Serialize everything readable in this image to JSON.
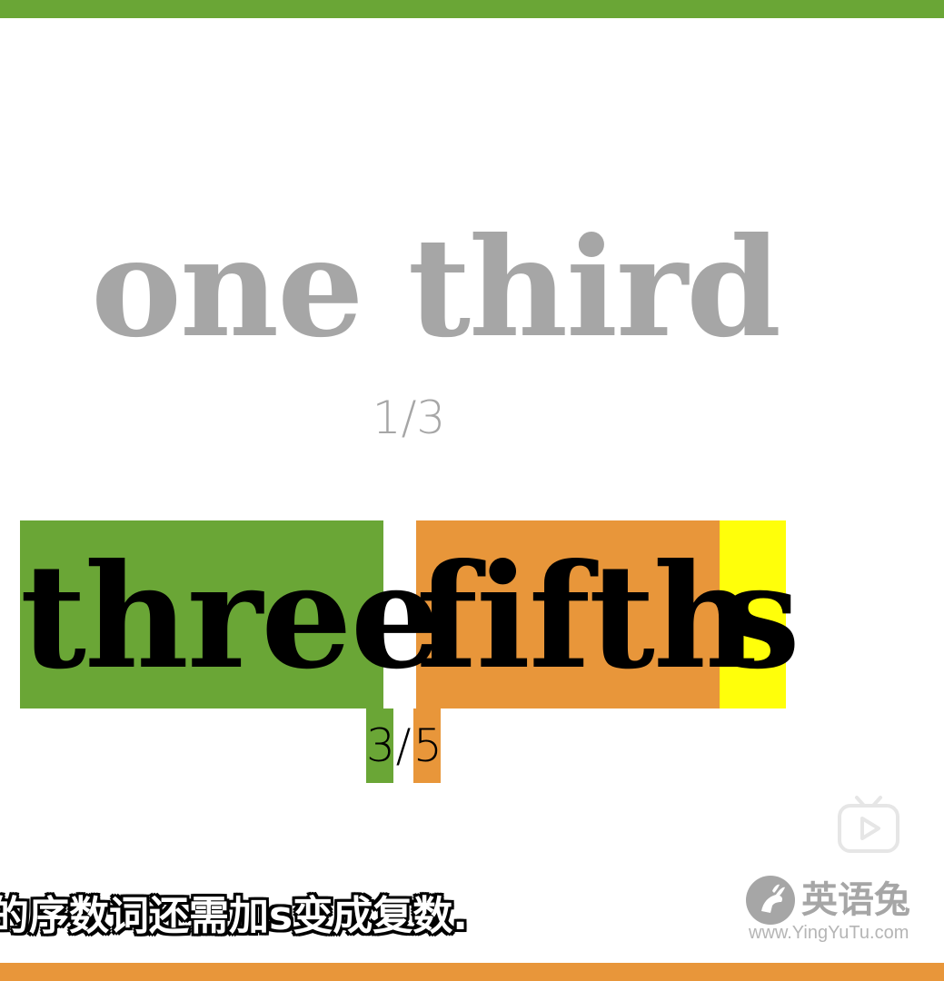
{
  "colors": {
    "green": "#6aa636",
    "orange": "#e8963a",
    "yellow": "#ffff0a",
    "gray_text": "#a6a6a6",
    "light_gray": "#b5b5b5",
    "black": "#000000"
  },
  "example1": {
    "phrase": "one third",
    "fraction": "1/3"
  },
  "example2": {
    "numerator_word": "three",
    "denominator_word": "fifth",
    "plural_suffix": "s",
    "numerator": "3",
    "slash": "/",
    "denominator": "5"
  },
  "subtitle": "的序数词还需加s变成复数.",
  "watermark": {
    "name": "英语兔",
    "url": "www.YingYuTu.com",
    "logo_icon": "rabbit-logo-icon"
  },
  "player": {
    "icon": "tv-play-icon"
  }
}
